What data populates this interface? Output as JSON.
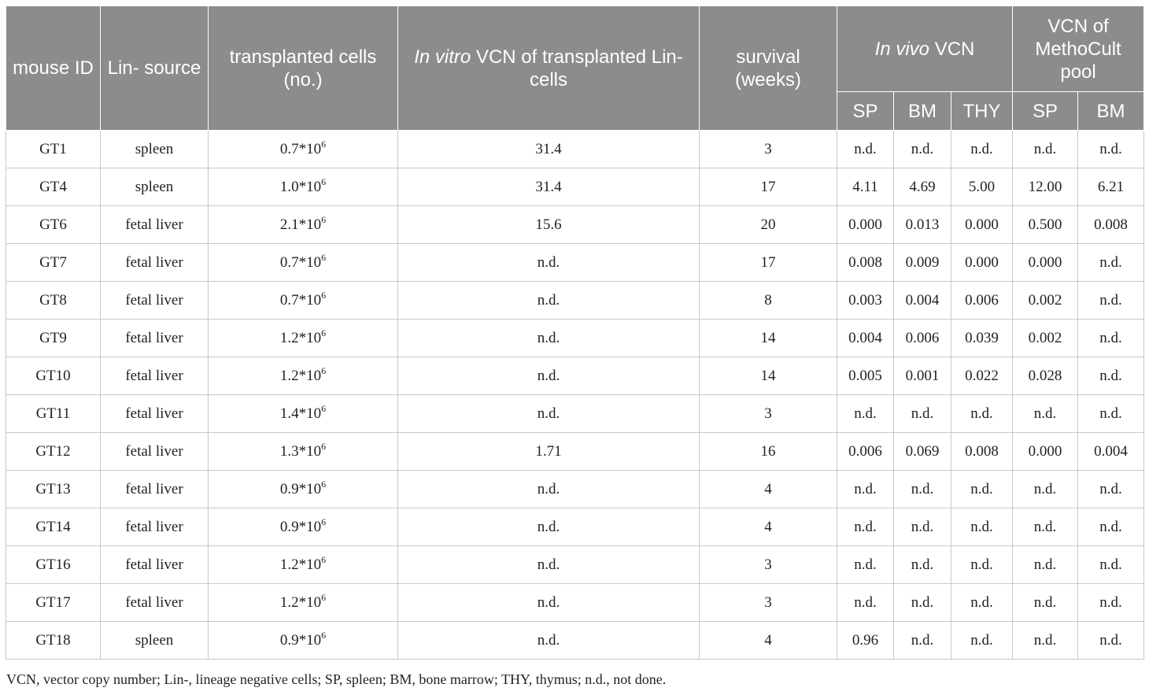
{
  "headers": {
    "mouse_id": "mouse ID",
    "lin_source": "Lin- source",
    "transplanted": "transplanted cells (no.)",
    "in_vitro_italic": "In vitro",
    "in_vitro_rest": " VCN of transplanted Lin- cells",
    "survival": "survival (weeks)",
    "in_vivo_italic": "In vivo",
    "in_vivo_rest": " VCN",
    "methocult": "VCN of MethoCult pool",
    "sub": [
      "SP",
      "BM",
      "THY",
      "SP",
      "BM"
    ]
  },
  "rows": [
    {
      "id": "GT1",
      "source": "spleen",
      "cells_base": "0.7*10",
      "cells_exp": "6",
      "in_vitro": "31.4",
      "survival": "3",
      "sp": "n.d.",
      "bm": "n.d.",
      "thy": "n.d.",
      "m_sp": "n.d.",
      "m_bm": "n.d."
    },
    {
      "id": "GT4",
      "source": "spleen",
      "cells_base": "1.0*10",
      "cells_exp": "6",
      "in_vitro": "31.4",
      "survival": "17",
      "sp": "4.11",
      "bm": "4.69",
      "thy": "5.00",
      "m_sp": "12.00",
      "m_bm": "6.21"
    },
    {
      "id": "GT6",
      "source": "fetal liver",
      "cells_base": "2.1*10",
      "cells_exp": "6",
      "in_vitro": "15.6",
      "survival": "20",
      "sp": "0.000",
      "bm": "0.013",
      "thy": "0.000",
      "m_sp": "0.500",
      "m_bm": "0.008"
    },
    {
      "id": "GT7",
      "source": "fetal liver",
      "cells_base": "0.7*10",
      "cells_exp": "6",
      "in_vitro": "n.d.",
      "survival": "17",
      "sp": "0.008",
      "bm": "0.009",
      "thy": "0.000",
      "m_sp": "0.000",
      "m_bm": "n.d."
    },
    {
      "id": "GT8",
      "source": "fetal liver",
      "cells_base": "0.7*10",
      "cells_exp": "6",
      "in_vitro": "n.d.",
      "survival": "8",
      "sp": "0.003",
      "bm": "0.004",
      "thy": "0.006",
      "m_sp": "0.002",
      "m_bm": "n.d."
    },
    {
      "id": "GT9",
      "source": "fetal liver",
      "cells_base": "1.2*10",
      "cells_exp": "6",
      "in_vitro": "n.d.",
      "survival": "14",
      "sp": "0.004",
      "bm": "0.006",
      "thy": "0.039",
      "m_sp": "0.002",
      "m_bm": "n.d."
    },
    {
      "id": "GT10",
      "source": "fetal liver",
      "cells_base": "1.2*10",
      "cells_exp": "6",
      "in_vitro": "n.d.",
      "survival": "14",
      "sp": "0.005",
      "bm": "0.001",
      "thy": "0.022",
      "m_sp": "0.028",
      "m_bm": "n.d."
    },
    {
      "id": "GT11",
      "source": "fetal liver",
      "cells_base": "1.4*10",
      "cells_exp": "6",
      "in_vitro": "n.d.",
      "survival": "3",
      "sp": "n.d.",
      "bm": "n.d.",
      "thy": "n.d.",
      "m_sp": "n.d.",
      "m_bm": "n.d."
    },
    {
      "id": "GT12",
      "source": "fetal liver",
      "cells_base": "1.3*10",
      "cells_exp": "6",
      "in_vitro": "1.71",
      "survival": "16",
      "sp": "0.006",
      "bm": "0.069",
      "thy": "0.008",
      "m_sp": "0.000",
      "m_bm": "0.004"
    },
    {
      "id": "GT13",
      "source": "fetal liver",
      "cells_base": "0.9*10",
      "cells_exp": "6",
      "in_vitro": "n.d.",
      "survival": "4",
      "sp": "n.d.",
      "bm": "n.d.",
      "thy": "n.d.",
      "m_sp": "n.d.",
      "m_bm": "n.d."
    },
    {
      "id": "GT14",
      "source": "fetal liver",
      "cells_base": "0.9*10",
      "cells_exp": "6",
      "in_vitro": "n.d.",
      "survival": "4",
      "sp": "n.d.",
      "bm": "n.d.",
      "thy": "n.d.",
      "m_sp": "n.d.",
      "m_bm": "n.d."
    },
    {
      "id": "GT16",
      "source": "fetal liver",
      "cells_base": "1.2*10",
      "cells_exp": "6",
      "in_vitro": "n.d.",
      "survival": "3",
      "sp": "n.d.",
      "bm": "n.d.",
      "thy": "n.d.",
      "m_sp": "n.d.",
      "m_bm": "n.d."
    },
    {
      "id": "GT17",
      "source": "fetal liver",
      "cells_base": "1.2*10",
      "cells_exp": "6",
      "in_vitro": "n.d.",
      "survival": "3",
      "sp": "n.d.",
      "bm": "n.d.",
      "thy": "n.d.",
      "m_sp": "n.d.",
      "m_bm": "n.d."
    },
    {
      "id": "GT18",
      "source": "spleen",
      "cells_base": "0.9*10",
      "cells_exp": "6",
      "in_vitro": "n.d.",
      "survival": "4",
      "sp": "0.96",
      "bm": "n.d.",
      "thy": "n.d.",
      "m_sp": "n.d.",
      "m_bm": "n.d."
    }
  ],
  "footnote": "VCN, vector copy number; Lin-, lineage negative cells; SP, spleen; BM, bone marrow; THY, thymus; n.d., not done.",
  "colors": {
    "header_bg": "#8c8c8c",
    "header_text": "#ffffff",
    "grid": "#c8c8c8",
    "body_text": "#222222"
  }
}
